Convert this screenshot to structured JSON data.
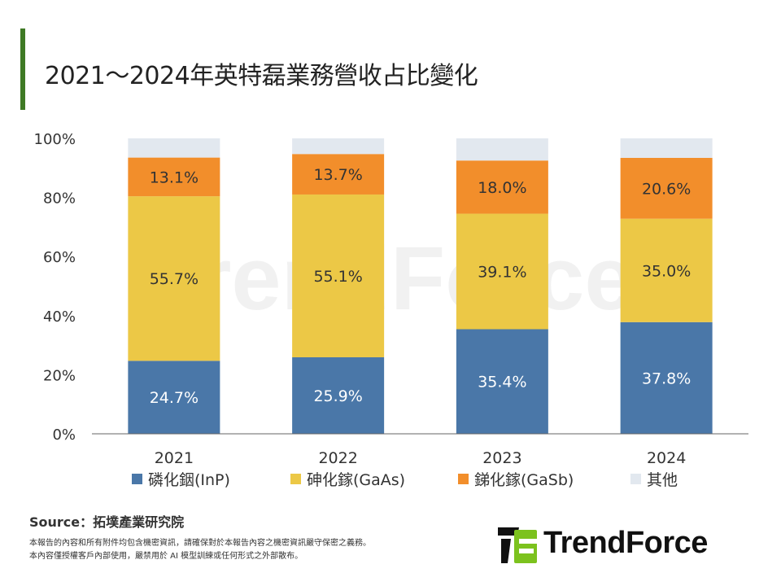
{
  "title": "2021～2024年英特磊業務營收占比變化",
  "source": "Source：拓墣產業研究院",
  "disclaimer": [
    "本報告的內容和所有附件均包含機密資訊，請確保對於本報告內容之機密資訊嚴守保密之義務。",
    "本內容僅授權客戶內部使用，嚴禁用於 AI 模型訓練或任何形式之外部散布。"
  ],
  "logo_text": "TrendForce",
  "watermark_text": "TrendForce",
  "chart_data": {
    "type": "bar",
    "stacked": true,
    "categories": [
      "2021",
      "2022",
      "2023",
      "2024"
    ],
    "ylim": [
      0,
      100
    ],
    "yticks": [
      "0%",
      "20%",
      "40%",
      "60%",
      "80%",
      "100%"
    ],
    "grid": false,
    "legend_position": "bottom",
    "series": [
      {
        "name": "磷化銦(InP)",
        "color": "#4a77a8",
        "values": [
          24.7,
          25.9,
          35.4,
          37.8
        ],
        "labels": [
          "24.7%",
          "25.9%",
          "35.4%",
          "37.8%"
        ]
      },
      {
        "name": "砷化鎵(GaAs)",
        "color": "#ecc846",
        "values": [
          55.7,
          55.1,
          39.1,
          35.0
        ],
        "labels": [
          "55.7%",
          "55.1%",
          "39.1%",
          "35.0%"
        ]
      },
      {
        "name": "銻化鎵(GaSb)",
        "color": "#f28e2b",
        "values": [
          13.1,
          13.7,
          18.0,
          20.6
        ],
        "labels": [
          "13.1%",
          "13.7%",
          "18.0%",
          "20.6%"
        ]
      },
      {
        "name": "其他",
        "color": "#e2e8ef",
        "values": [
          6.5,
          5.3,
          7.5,
          6.6
        ],
        "labels": [
          "",
          "",
          "",
          ""
        ]
      }
    ]
  }
}
